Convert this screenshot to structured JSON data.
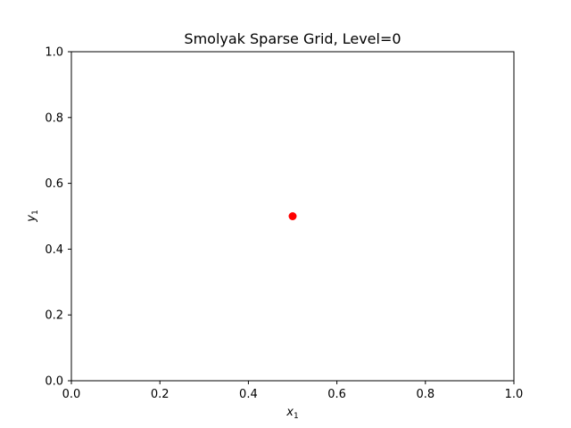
{
  "chart_data": {
    "type": "scatter",
    "title": "Smolyak Sparse Grid, Level=0",
    "xlabel": "x",
    "xlabel_sub": "1",
    "ylabel": "y",
    "ylabel_sub": "1",
    "xlim": [
      0.0,
      1.0
    ],
    "ylim": [
      0.0,
      1.0
    ],
    "xticks": [
      0.0,
      0.2,
      0.4,
      0.6,
      0.8,
      1.0
    ],
    "yticks": [
      0.0,
      0.2,
      0.4,
      0.6,
      0.8,
      1.0
    ],
    "xtick_labels": [
      "0.0",
      "0.2",
      "0.4",
      "0.6",
      "0.8",
      "1.0"
    ],
    "ytick_labels": [
      "0.0",
      "0.2",
      "0.4",
      "0.6",
      "0.8",
      "1.0"
    ],
    "grid": false,
    "legend": "none",
    "series": [
      {
        "color": "#ff0000",
        "marker": "circle",
        "points": [
          {
            "x": 0.5,
            "y": 0.5
          }
        ]
      }
    ]
  }
}
